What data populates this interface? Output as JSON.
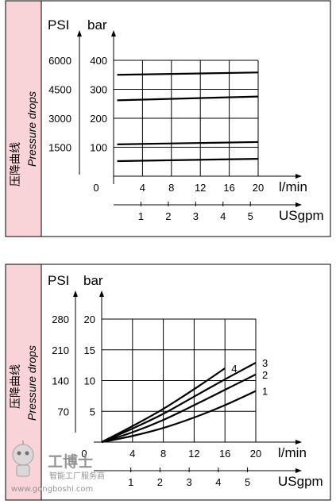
{
  "chart_data": [
    {
      "type": "line",
      "band_label_zh": "压降曲线",
      "band_label_en": "Pressure drops",
      "y_units": [
        "PSI",
        "bar"
      ],
      "x_units": [
        "l/min",
        "USgpm"
      ],
      "x_ticks": [
        "0",
        "4",
        "8",
        "12",
        "16",
        "20"
      ],
      "x2_ticks": [
        "1",
        "2",
        "3",
        "4",
        "5"
      ],
      "y_ticks_bar": [
        "400",
        "300",
        "200",
        "100"
      ],
      "y_ticks_psi": [
        "6000",
        "4500",
        "3000",
        "1500"
      ],
      "x": [
        0.5,
        20
      ],
      "ylim": [
        0,
        400
      ],
      "xlim": [
        0,
        20
      ],
      "series": [
        {
          "values": [
            350,
            358
          ]
        },
        {
          "values": [
            262,
            275
          ]
        },
        {
          "values": [
            110,
            118
          ]
        },
        {
          "values": [
            52,
            60
          ]
        }
      ]
    },
    {
      "type": "line",
      "band_label_zh": "压降曲线",
      "band_label_en": "Pressure drops",
      "y_units": [
        "PSI",
        "bar"
      ],
      "x_units": [
        "l/min",
        "USgpm"
      ],
      "x_ticks": [
        "0",
        "4",
        "8",
        "12",
        "16",
        "20"
      ],
      "x2_ticks": [
        "1",
        "2",
        "3",
        "4",
        "5"
      ],
      "y_ticks_bar": [
        "20",
        "15",
        "10",
        "5"
      ],
      "y_ticks_psi": [
        "280",
        "210",
        "140",
        "70"
      ],
      "x": [
        0,
        4,
        8,
        12,
        16,
        20
      ],
      "ylim": [
        0,
        20
      ],
      "xlim": [
        0,
        20
      ],
      "series": [
        {
          "name": "1",
          "values": [
            0,
            1.0,
            2.3,
            4.0,
            6.0,
            8.3
          ]
        },
        {
          "name": "2",
          "values": [
            0,
            1.6,
            3.6,
            6.0,
            8.5,
            11.0
          ]
        },
        {
          "name": "3",
          "values": [
            0,
            2.2,
            4.6,
            7.4,
            10.2,
            12.9
          ]
        },
        {
          "name": "4",
          "values": [
            0,
            2.6,
            5.4,
            8.6,
            12.0,
            null
          ]
        }
      ]
    }
  ],
  "watermark": {
    "brand": "工博士",
    "tagline": "智能工厂服务商",
    "url": "www.gongboshi.com"
  }
}
